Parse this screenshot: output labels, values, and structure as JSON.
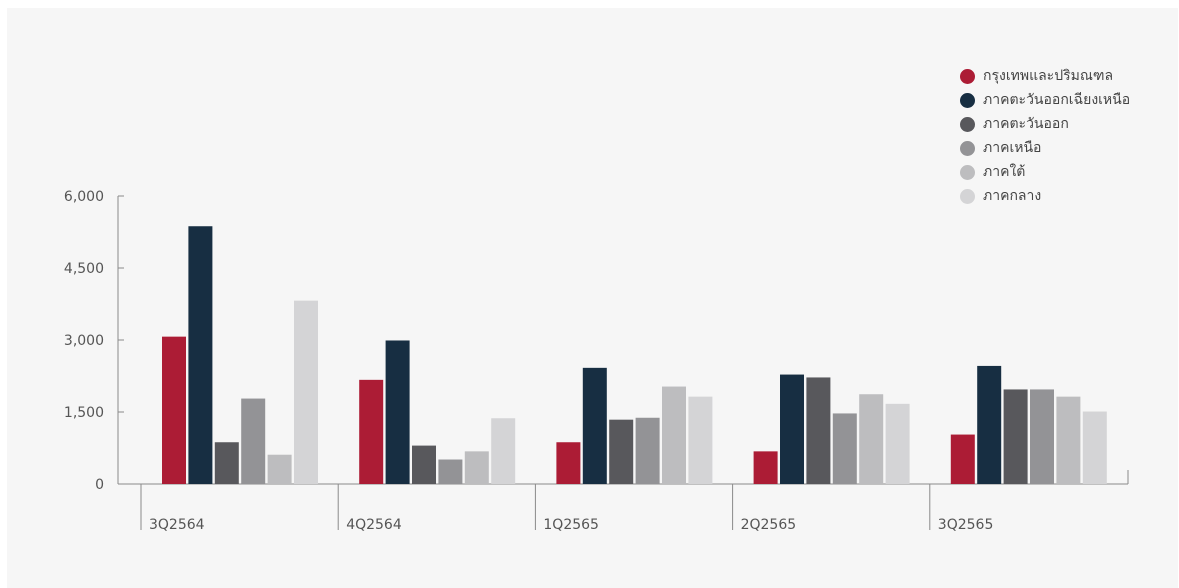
{
  "chart_data": {
    "type": "bar",
    "categories": [
      "3Q2564",
      "4Q2564",
      "1Q2565",
      "2Q2565",
      "3Q2565"
    ],
    "series": [
      {
        "name": "กรุงเทพและปริมณฑล",
        "color": "#ac1c35",
        "values": [
          3070,
          2170,
          870,
          680,
          1030
        ]
      },
      {
        "name": "ภาคตะวันออกเฉียงเหนือ",
        "color": "#172e42",
        "values": [
          5370,
          2990,
          2420,
          2280,
          2460
        ]
      },
      {
        "name": "ภาคตะวันออก",
        "color": "#58585c",
        "values": [
          870,
          800,
          1340,
          2220,
          1970
        ]
      },
      {
        "name": "ภาคเหนือ",
        "color": "#939396",
        "values": [
          1780,
          510,
          1380,
          1470,
          1970
        ]
      },
      {
        "name": "ภาคใต้",
        "color": "#bdbdbf",
        "values": [
          610,
          680,
          2030,
          1870,
          1820
        ]
      },
      {
        "name": "ภาคกลาง",
        "color": "#d4d4d6",
        "values": [
          3820,
          1370,
          1820,
          1670,
          1510
        ]
      }
    ],
    "yticks": [
      "0",
      "1,500",
      "3,000",
      "4,500",
      "6,000"
    ],
    "ylim": [
      0,
      6000
    ],
    "legend_position": "top-right",
    "grid": false
  }
}
